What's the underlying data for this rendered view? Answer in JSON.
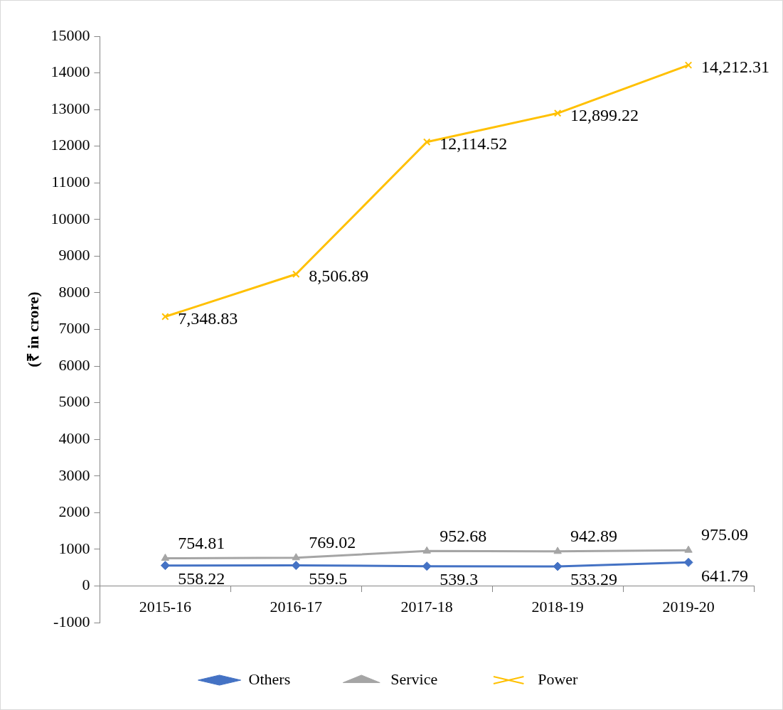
{
  "chart_data": {
    "type": "line",
    "ylabel": "(₹ in crore)",
    "categories": [
      "2015-16",
      "2016-17",
      "2017-18",
      "2018-19",
      "2019-20"
    ],
    "series": [
      {
        "name": "Others",
        "color": "#4472c4",
        "marker": "diamond",
        "values": [
          558.22,
          559.5,
          539.3,
          533.29,
          641.79
        ],
        "value_labels": [
          "558.22",
          "559.5",
          "539.3",
          "533.29",
          "641.79"
        ]
      },
      {
        "name": "Service",
        "color": "#a5a5a5",
        "marker": "triangle",
        "values": [
          754.81,
          769.02,
          952.68,
          942.89,
          975.09
        ],
        "value_labels": [
          "754.81",
          "769.02",
          "952.68",
          "942.89",
          "975.09"
        ]
      },
      {
        "name": "Power",
        "color": "#ffc000",
        "marker": "cross",
        "values": [
          7348.83,
          8506.89,
          12114.52,
          12899.22,
          14212.31
        ],
        "value_labels": [
          "7,348.83",
          "8,506.89",
          "12,114.52",
          "12,899.22",
          "14,212.31"
        ]
      }
    ],
    "ylim": [
      -1000,
      15000
    ],
    "yticks": [
      -1000,
      0,
      1000,
      2000,
      3000,
      4000,
      5000,
      6000,
      7000,
      8000,
      9000,
      10000,
      11000,
      12000,
      13000,
      14000,
      15000
    ],
    "grid": false,
    "legend": "bottom",
    "line_style": "solid"
  }
}
